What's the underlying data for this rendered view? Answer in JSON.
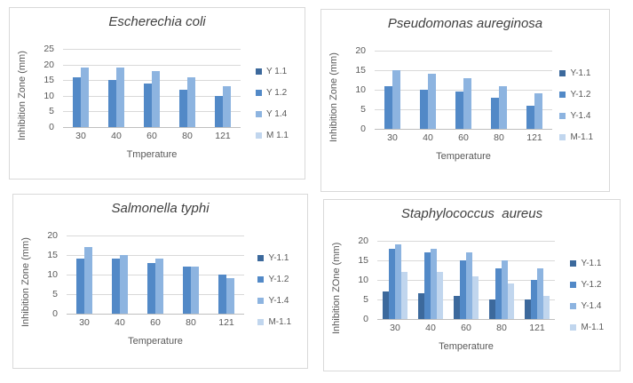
{
  "page": {
    "background": "#ffffff",
    "panel_border": "#d9d9d9"
  },
  "chart_data": [
    {
      "type": "bar",
      "title": "Escherechia coli",
      "ylabel": "Inhibition Zone (mm)",
      "xlabel": "Tmperature",
      "categories": [
        "30",
        "40",
        "60",
        "80",
        "121"
      ],
      "y_ticks": [
        0,
        5,
        10,
        15,
        20,
        25
      ],
      "ylim": [
        0,
        25
      ],
      "grid": true,
      "legend_position": "right",
      "legend": [
        {
          "label": "Y 1.1",
          "color": "#3C699C"
        },
        {
          "label": "Y 1.2",
          "color": "#5289C7"
        },
        {
          "label": "Y 1.4",
          "color": "#8DB4E0"
        },
        {
          "label": "M 1.1",
          "color": "#C1D6EE"
        }
      ],
      "series": [
        {
          "name": "Y 1.2",
          "color": "#5289C7",
          "values": [
            16,
            15,
            14,
            12,
            10
          ]
        },
        {
          "name": "Y 1.4",
          "color": "#8DB4E0",
          "values": [
            19,
            19,
            18,
            16,
            13
          ]
        }
      ]
    },
    {
      "type": "bar",
      "title": "Pseudomonas aureginosa",
      "ylabel": "Inhibition Zone (mm)",
      "xlabel": "Temperature",
      "categories": [
        "30",
        "40",
        "60",
        "80",
        "121"
      ],
      "y_ticks": [
        0,
        5,
        10,
        15,
        20
      ],
      "ylim": [
        0,
        20
      ],
      "grid": true,
      "legend_position": "right",
      "legend": [
        {
          "label": "Y-1.1",
          "color": "#3C699C"
        },
        {
          "label": "Y-1.2",
          "color": "#5289C7"
        },
        {
          "label": "Y-1.4",
          "color": "#8DB4E0"
        },
        {
          "label": "M-1.1",
          "color": "#C1D6EE"
        }
      ],
      "series": [
        {
          "name": "Y-1.2",
          "color": "#5289C7",
          "values": [
            11,
            10,
            9.5,
            8,
            6
          ]
        },
        {
          "name": "Y-1.4",
          "color": "#8DB4E0",
          "values": [
            15,
            14,
            13,
            11,
            9
          ]
        }
      ]
    },
    {
      "type": "bar",
      "title": "Salmonella typhi",
      "ylabel": "Inhibition Zone (mm)",
      "xlabel": "Temperature",
      "categories": [
        "30",
        "40",
        "60",
        "80",
        "121"
      ],
      "y_ticks": [
        0,
        5,
        10,
        15,
        20
      ],
      "ylim": [
        0,
        20
      ],
      "grid": true,
      "legend_position": "right",
      "legend": [
        {
          "label": "Y-1.1",
          "color": "#3C699C"
        },
        {
          "label": "Y-1.2",
          "color": "#5289C7"
        },
        {
          "label": "Y-1.4",
          "color": "#8DB4E0"
        },
        {
          "label": "M-1.1",
          "color": "#C1D6EE"
        }
      ],
      "series": [
        {
          "name": "Y-1.2",
          "color": "#5289C7",
          "values": [
            14,
            14,
            13,
            12,
            10
          ]
        },
        {
          "name": "Y-1.4",
          "color": "#8DB4E0",
          "values": [
            17,
            15,
            14,
            12,
            9
          ]
        }
      ]
    },
    {
      "type": "bar",
      "title": "Staphylococcus  aureus",
      "ylabel": "Inhibition ZOne (mm)",
      "xlabel": "Temperature",
      "categories": [
        "30",
        "40",
        "60",
        "80",
        "121"
      ],
      "y_ticks": [
        0,
        5,
        10,
        15,
        20
      ],
      "ylim": [
        0,
        20
      ],
      "grid": true,
      "legend_position": "right",
      "legend": [
        {
          "label": "Y-1.1",
          "color": "#3C699C"
        },
        {
          "label": "Y-1.2",
          "color": "#5289C7"
        },
        {
          "label": "Y-1.4",
          "color": "#8DB4E0"
        },
        {
          "label": "M-1.1",
          "color": "#C1D6EE"
        }
      ],
      "series": [
        {
          "name": "Y-1.1",
          "color": "#3C699C",
          "values": [
            7,
            6.5,
            6,
            5,
            5
          ]
        },
        {
          "name": "Y-1.2",
          "color": "#5289C7",
          "values": [
            18,
            17,
            15,
            13,
            10
          ]
        },
        {
          "name": "Y-1.4",
          "color": "#8DB4E0",
          "values": [
            19,
            18,
            17,
            15,
            13
          ]
        },
        {
          "name": "M-1.1",
          "color": "#C1D6EE",
          "values": [
            12,
            12,
            11,
            9,
            6
          ]
        }
      ]
    }
  ]
}
